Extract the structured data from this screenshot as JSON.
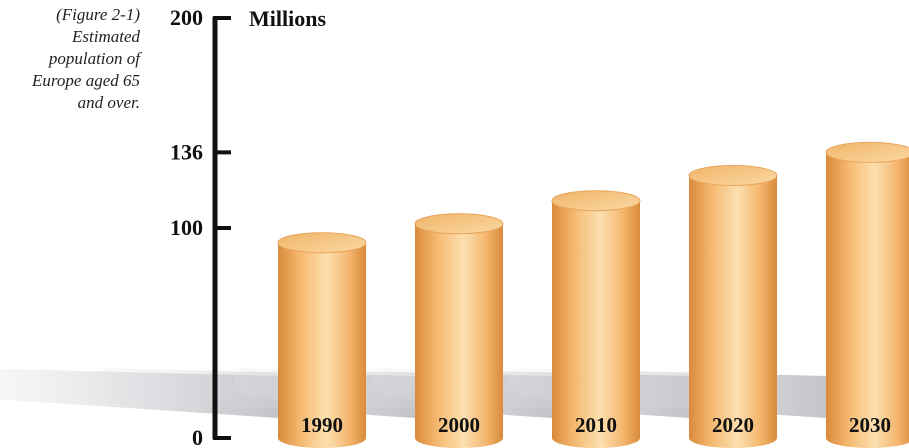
{
  "caption": {
    "lines": [
      "(Figure 2-1)",
      "Estimated",
      "population of",
      "Europe aged 65",
      "and over."
    ]
  },
  "colors": {
    "cylinder_light": "#fce0b0",
    "cylinder_mid": "#f5b870",
    "cylinder_dark": "#d98a3a",
    "cylinder_top": "#f7c98c",
    "shadow": "#c9c9cc",
    "axis": "#111111"
  },
  "chart_data": {
    "type": "bar",
    "title": "",
    "xlabel": "",
    "ylabel": "Millions",
    "categories": [
      "1990",
      "2000",
      "2010",
      "2020",
      "2030"
    ],
    "values": [
      93,
      102,
      113,
      125,
      136
    ],
    "yticks": [
      0,
      100,
      136,
      200
    ],
    "ylim": [
      0,
      200
    ],
    "grid": false
  }
}
